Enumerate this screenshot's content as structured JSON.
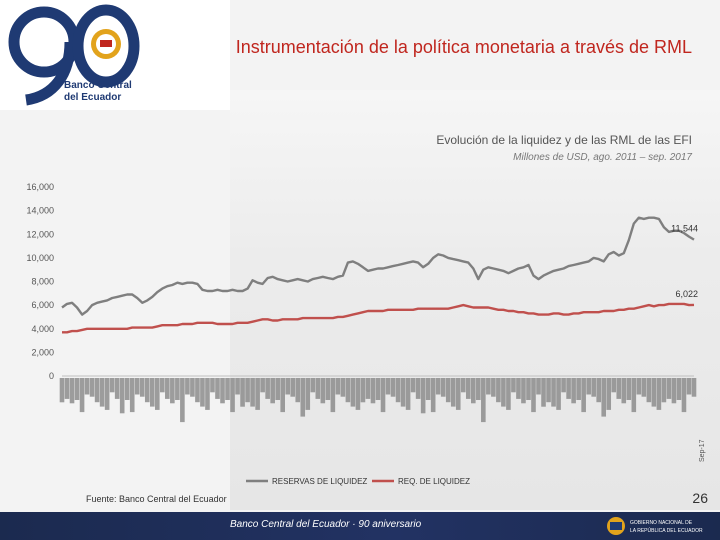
{
  "header": {
    "title": "Instrumentación de la política monetaria a través de RML",
    "logo_number": "90",
    "logo_text_line1": "Banco Central",
    "logo_text_line2": "del Ecuador"
  },
  "footer": {
    "source": "Fuente: Banco Central del Ecuador",
    "page_number": "26",
    "banner_text": "Banco Central del Ecuador · 90 aniversario",
    "gov_text_line1": "GOBIERNO NACIONAL DE",
    "gov_text_line2": "LA REPÚBLICA DEL ECUADOR"
  },
  "colors": {
    "title": "#c0261e",
    "series_reserves": "#7f7f7f",
    "series_requirement": "#c0504d",
    "footer": "#1b2a4f",
    "logo_blue": "#1f3a73",
    "logo_gold": "#e2a31c"
  },
  "chart_data": {
    "type": "line",
    "title": "Evolución de la liquidez y de las RML de las EFI",
    "subtitle": "Millones de USD, ago. 2011 – sep. 2017",
    "ylim": [
      0,
      16000
    ],
    "yticks": [
      "0",
      "2,000",
      "4,000",
      "6,000",
      "8,000",
      "10,000",
      "12,000",
      "14,000",
      "16,000"
    ],
    "grid": false,
    "legend": "bottom",
    "x_period": "ago. 2011 – sep. 2017 (monthly)",
    "x_last_label": "Sep-17",
    "series": [
      {
        "name": "RESERVAS DE LIQUIDEZ",
        "values": [
          5800,
          6100,
          6200,
          5800,
          5200,
          5500,
          6000,
          6200,
          6300,
          6400,
          6600,
          6700,
          6800,
          6900,
          6900,
          6600,
          6200,
          6400,
          6700,
          7100,
          7400,
          7600,
          7700,
          7900,
          7800,
          7900,
          7900,
          7800,
          7300,
          7200,
          7200,
          7300,
          7200,
          7200,
          7300,
          7200,
          7200,
          7400,
          8100,
          7900,
          7800,
          8300,
          8400,
          8200,
          8100,
          8000,
          8100,
          8200,
          8100,
          8000,
          8200,
          8300,
          8400,
          8300,
          8200,
          8400,
          8500,
          9600,
          9700,
          9500,
          9200,
          8900,
          9000,
          9100,
          9100,
          9200,
          9300,
          9400,
          9500,
          9600,
          9700,
          9600,
          9200,
          9500,
          10000,
          10300,
          10200,
          10000,
          9900,
          9800,
          9700,
          9600,
          9100,
          8200,
          9000,
          9200,
          9100,
          9000,
          8900,
          8700,
          8900,
          9100,
          9200,
          9400,
          8500,
          8200,
          8500,
          8700,
          8900,
          9000,
          9100,
          9300,
          9400,
          9500,
          9600,
          9700,
          10000,
          9900,
          9700,
          10300,
          10500,
          10200,
          10400,
          11500,
          12900,
          13400,
          13300,
          13400,
          13400,
          13300,
          12600,
          12200,
          12300,
          12300,
          12100,
          11800,
          11544
        ]
      },
      {
        "name": "REQ. DE LIQUIDEZ",
        "values": [
          3700,
          3700,
          3800,
          3800,
          3900,
          4000,
          4000,
          4000,
          4000,
          4000,
          4000,
          4000,
          4000,
          4000,
          4100,
          4100,
          4100,
          4100,
          4100,
          4200,
          4300,
          4300,
          4300,
          4300,
          4400,
          4400,
          4400,
          4500,
          4500,
          4500,
          4500,
          4400,
          4400,
          4400,
          4400,
          4500,
          4500,
          4500,
          4600,
          4700,
          4800,
          4800,
          4700,
          4700,
          4800,
          4800,
          4800,
          4800,
          4900,
          4900,
          4900,
          4900,
          4900,
          4900,
          4900,
          5000,
          5000,
          5100,
          5200,
          5300,
          5400,
          5500,
          5500,
          5500,
          5500,
          5600,
          5600,
          5600,
          5600,
          5600,
          5600,
          5700,
          5700,
          5700,
          5700,
          5700,
          5700,
          5700,
          5800,
          5900,
          6000,
          5900,
          5800,
          5800,
          5800,
          5800,
          5700,
          5600,
          5600,
          5500,
          5500,
          5400,
          5400,
          5300,
          5300,
          5200,
          5200,
          5200,
          5300,
          5300,
          5200,
          5200,
          5300,
          5300,
          5400,
          5400,
          5400,
          5400,
          5500,
          5500,
          5500,
          5600,
          5600,
          5700,
          5700,
          5800,
          5900,
          6000,
          5900,
          6000,
          6000,
          6100,
          6100,
          6100,
          6100,
          6000,
          6022
        ]
      }
    ],
    "data_labels": [
      {
        "series": "RESERVAS DE LIQUIDEZ",
        "text": "11,544"
      },
      {
        "series": "REQ. DE LIQUIDEZ",
        "text": "6,022"
      }
    ]
  }
}
